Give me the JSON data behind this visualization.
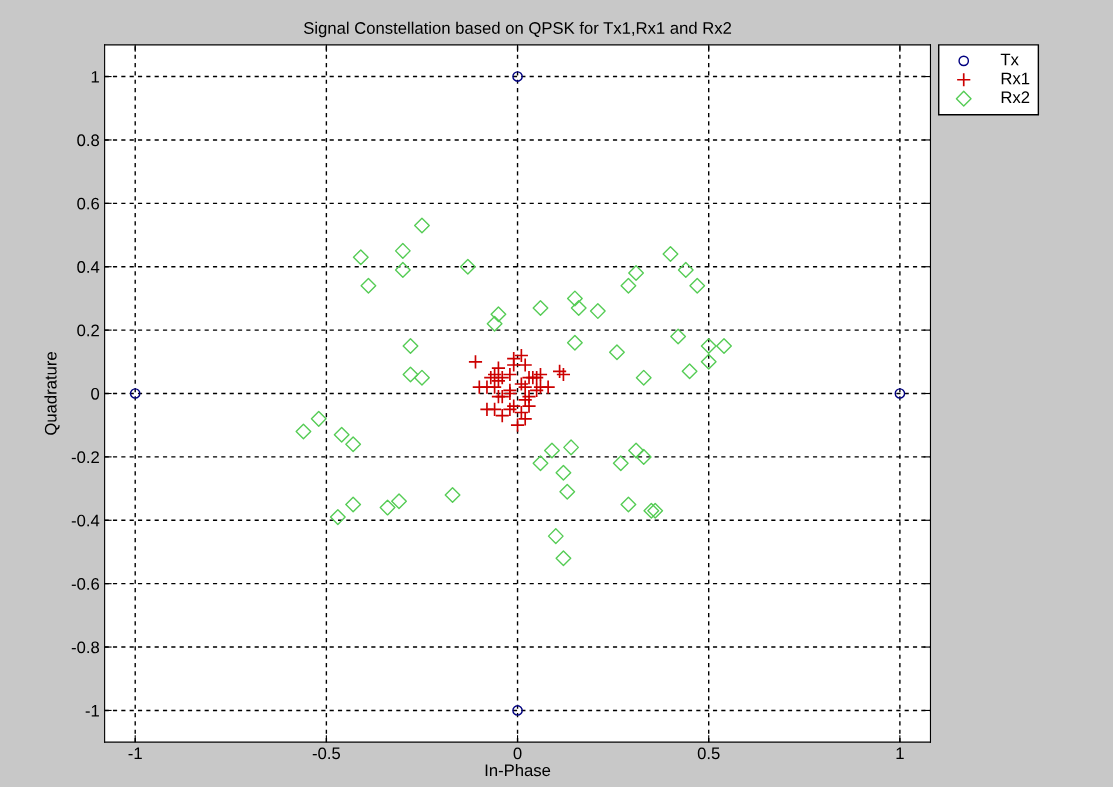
{
  "chart_data": {
    "type": "scatter",
    "title": "Signal Constellation based on QPSK for Tx1,Rx1 and Rx2",
    "xlabel": "In-Phase",
    "ylabel": "Quadrature",
    "xlim": [
      -1.08,
      1.08
    ],
    "ylim": [
      -1.1,
      1.1
    ],
    "xticks": [
      -1,
      -0.5,
      0,
      0.5,
      1
    ],
    "yticks": [
      -1,
      -0.8,
      -0.6,
      -0.4,
      -0.2,
      0,
      0.2,
      0.4,
      0.6,
      0.8,
      1
    ],
    "grid": true,
    "line_style": "dashed",
    "legend": "top right",
    "series": [
      {
        "name": "Tx",
        "color": "#000080",
        "marker": "circle",
        "x": [
          1,
          0,
          -1,
          0
        ],
        "values": [
          0,
          1,
          0,
          -1
        ]
      },
      {
        "name": "Rx1",
        "color": "#cc0000",
        "marker": "cross",
        "x": [
          -0.11,
          -0.01,
          0.01,
          -0.01,
          0.02,
          -0.05,
          -0.06,
          -0.04,
          -0.02,
          -0.07,
          -0.05,
          0.03,
          0.05,
          0.06,
          0.11,
          0.12,
          -0.1,
          -0.08,
          -0.06,
          -0.02,
          0.01,
          0.02,
          0.05,
          0.06,
          0.08,
          -0.05,
          -0.04,
          -0.02,
          0.03,
          0.02,
          -0.08,
          -0.04,
          -0.02,
          -0.01,
          0.01,
          0.02,
          0.03,
          0.0,
          -0.06,
          0.04
        ],
        "values": [
          0.1,
          0.11,
          0.12,
          0.09,
          0.09,
          0.08,
          0.06,
          0.05,
          0.06,
          0.05,
          0.04,
          0.05,
          0.05,
          0.06,
          0.07,
          0.06,
          0.02,
          0.02,
          0.02,
          0.01,
          0.03,
          0.02,
          0.01,
          0.02,
          0.02,
          -0.01,
          -0.01,
          0.0,
          -0.01,
          -0.02,
          -0.05,
          -0.07,
          -0.05,
          -0.04,
          -0.06,
          -0.08,
          -0.04,
          -0.1,
          -0.05,
          0.05
        ]
      },
      {
        "name": "Rx2",
        "color": "#55cc55",
        "marker": "diamond",
        "x": [
          -0.25,
          -0.41,
          -0.3,
          -0.3,
          -0.39,
          -0.13,
          -0.05,
          -0.06,
          0.06,
          -0.28,
          -0.28,
          -0.25,
          0.15,
          0.16,
          0.21,
          0.15,
          0.29,
          0.31,
          0.4,
          0.44,
          0.47,
          0.42,
          0.26,
          0.5,
          0.54,
          0.5,
          0.45,
          0.33,
          -0.56,
          -0.52,
          -0.46,
          -0.43,
          -0.47,
          -0.43,
          -0.34,
          -0.31,
          -0.17,
          0.06,
          0.09,
          0.14,
          0.12,
          0.13,
          0.27,
          0.31,
          0.33,
          0.29,
          0.35,
          0.36,
          0.1,
          0.12
        ],
        "values": [
          0.53,
          0.43,
          0.45,
          0.39,
          0.34,
          0.4,
          0.25,
          0.22,
          0.27,
          0.15,
          0.06,
          0.05,
          0.3,
          0.27,
          0.26,
          0.16,
          0.34,
          0.38,
          0.44,
          0.39,
          0.34,
          0.18,
          0.13,
          0.15,
          0.15,
          0.1,
          0.07,
          0.05,
          -0.12,
          -0.08,
          -0.13,
          -0.16,
          -0.39,
          -0.35,
          -0.36,
          -0.34,
          -0.32,
          -0.22,
          -0.18,
          -0.17,
          -0.25,
          -0.31,
          -0.22,
          -0.18,
          -0.2,
          -0.35,
          -0.37,
          -0.37,
          -0.45,
          -0.52
        ]
      }
    ]
  }
}
